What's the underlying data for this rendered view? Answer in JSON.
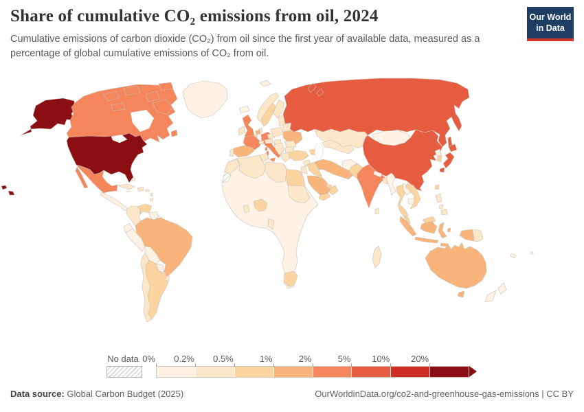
{
  "header": {
    "title": "Share of cumulative CO₂ emissions from oil, 2024",
    "subtitle": "Cumulative emissions of carbon dioxide (CO₂) from oil since the first year of available data, measured as a percentage of global cumulative emissions of CO₂ from oil.",
    "logo": {
      "line1": "Our World",
      "line2": "in Data",
      "bg": "#1d3d63",
      "accent": "#d4342c"
    }
  },
  "legend": {
    "no_data_label": "No data",
    "bins": [
      {
        "label": "0%",
        "range": "0%–0.2%",
        "color": "#fdf2e3"
      },
      {
        "label": "0.2%",
        "range": "0.2%–0.5%",
        "color": "#fce7c8"
      },
      {
        "label": "0.5%",
        "range": "0.5%–1%",
        "color": "#fbd49f"
      },
      {
        "label": "1%",
        "range": "1%–2%",
        "color": "#f8b47a"
      },
      {
        "label": "2%",
        "range": "2%–5%",
        "color": "#f5865b"
      },
      {
        "label": "5%",
        "range": "5%–10%",
        "color": "#e65c40"
      },
      {
        "label": "10%",
        "range": "10%–20%",
        "color": "#ce2d26"
      },
      {
        "label": "20%",
        "range": "20%+",
        "color": "#8b0e12"
      }
    ]
  },
  "footer": {
    "source_label": "Data source:",
    "source_value": " Global Carbon Budget (2025)",
    "right_text": "OurWorldinData.org/co2-and-greenhouse-gas-emissions | CC BY"
  },
  "chart_data": {
    "type": "choropleth-map",
    "title": "Share of cumulative CO₂ emissions from oil, 2024",
    "unit": "% of global cumulative CO₂ emissions from oil",
    "year": 2024,
    "color_scale_bin_labels": [
      "0%",
      "0.2%",
      "0.5%",
      "1%",
      "2%",
      "5%",
      "10%",
      "20%"
    ],
    "regions": {
      "united-states": {
        "name": "United States",
        "bin": 7
      },
      "canada": {
        "name": "Canada",
        "bin": 4
      },
      "greenland": {
        "name": "Greenland",
        "bin": 0
      },
      "mexico": {
        "name": "Mexico",
        "bin": 4
      },
      "cuba": {
        "name": "Cuba",
        "bin": 1
      },
      "hispaniola": {
        "name": "Haiti & Dominican Rep.",
        "bin": 1
      },
      "jamaica": {
        "name": "Jamaica",
        "bin": 0
      },
      "bahamas": {
        "name": "Bahamas",
        "bin": 0
      },
      "caribbean-islands": {
        "name": "Caribbean islands",
        "bin": 1
      },
      "central-america": {
        "name": "Central America",
        "bin": 0
      },
      "colombia": {
        "name": "Colombia",
        "bin": 1
      },
      "venezuela": {
        "name": "Venezuela",
        "bin": 2
      },
      "guyana-suriname": {
        "name": "Guyana & Suriname",
        "bin": 0
      },
      "french-guiana": {
        "name": "French Guiana",
        "bin": "no-data"
      },
      "ecuador": {
        "name": "Ecuador",
        "bin": 0
      },
      "peru": {
        "name": "Peru",
        "bin": 0
      },
      "brazil": {
        "name": "Brazil",
        "bin": 3
      },
      "bolivia": {
        "name": "Bolivia",
        "bin": 0
      },
      "paraguay": {
        "name": "Paraguay",
        "bin": 0
      },
      "uruguay": {
        "name": "Uruguay",
        "bin": 1
      },
      "argentina": {
        "name": "Argentina",
        "bin": 2
      },
      "chile": {
        "name": "Chile",
        "bin": 1
      },
      "iceland": {
        "name": "Iceland",
        "bin": 0
      },
      "ireland": {
        "name": "Ireland",
        "bin": 1
      },
      "united-kingdom": {
        "name": "United Kingdom",
        "bin": 4
      },
      "norway": {
        "name": "Norway",
        "bin": 1
      },
      "sweden": {
        "name": "Sweden",
        "bin": 2
      },
      "finland": {
        "name": "Finland",
        "bin": 1
      },
      "denmark": {
        "name": "Denmark",
        "bin": 1
      },
      "germany": {
        "name": "Germany",
        "bin": 4
      },
      "netherlands": {
        "name": "Netherlands",
        "bin": 3
      },
      "belgium": {
        "name": "Belgium",
        "bin": 2
      },
      "france": {
        "name": "France",
        "bin": 4
      },
      "spain": {
        "name": "Spain",
        "bin": 3
      },
      "portugal": {
        "name": "Portugal",
        "bin": 1
      },
      "italy": {
        "name": "Italy",
        "bin": 4
      },
      "switzerland": {
        "name": "Switzerland",
        "bin": 1
      },
      "czechia": {
        "name": "Czechia",
        "bin": 1
      },
      "austria": {
        "name": "Austria",
        "bin": 1
      },
      "hungary": {
        "name": "Hungary",
        "bin": 1
      },
      "poland": {
        "name": "Poland",
        "bin": 1
      },
      "baltic-states": {
        "name": "Baltic states",
        "bin": 1
      },
      "belarus": {
        "name": "Belarus",
        "bin": 1
      },
      "ukraine": {
        "name": "Ukraine",
        "bin": 3
      },
      "romania": {
        "name": "Romania",
        "bin": 1
      },
      "balkans": {
        "name": "Balkans",
        "bin": 1
      },
      "bulgaria": {
        "name": "Bulgaria",
        "bin": 1
      },
      "greece": {
        "name": "Greece",
        "bin": 1
      },
      "svalbard": {
        "name": "Svalbard",
        "bin": 0
      },
      "russia": {
        "name": "Russia",
        "bin": 5
      },
      "kazakhstan": {
        "name": "Kazakhstan",
        "bin": 1
      },
      "mongolia": {
        "name": "Mongolia",
        "bin": 0
      },
      "china": {
        "name": "China",
        "bin": 5
      },
      "north-korea": {
        "name": "North Korea",
        "bin": 0
      },
      "south-korea": {
        "name": "South Korea",
        "bin": 2
      },
      "japan": {
        "name": "Japan",
        "bin": 5
      },
      "taiwan": {
        "name": "Taiwan",
        "bin": 2
      },
      "turkey": {
        "name": "Turkey",
        "bin": 2
      },
      "caucasus": {
        "name": "Caucasus",
        "bin": 2
      },
      "central-asia": {
        "name": "Central Asia",
        "bin": 1
      },
      "syria": {
        "name": "Syria",
        "bin": 1
      },
      "israel-jordan": {
        "name": "Israel & Jordan",
        "bin": 1
      },
      "iraq": {
        "name": "Iraq",
        "bin": 2
      },
      "saudi-arabia": {
        "name": "Saudi Arabia",
        "bin": 3
      },
      "yemen": {
        "name": "Yemen",
        "bin": 2
      },
      "oman": {
        "name": "Oman",
        "bin": 2
      },
      "uae-qatar": {
        "name": "UAE & Qatar",
        "bin": 2
      },
      "kuwait": {
        "name": "Kuwait",
        "bin": 2
      },
      "iran": {
        "name": "Iran",
        "bin": 3
      },
      "afghanistan": {
        "name": "Afghanistan",
        "bin": 0
      },
      "pakistan": {
        "name": "Pakistan",
        "bin": 2
      },
      "india": {
        "name": "India",
        "bin": 4
      },
      "sri-lanka": {
        "name": "Sri Lanka",
        "bin": 1
      },
      "nepal": {
        "name": "Nepal",
        "bin": 0
      },
      "bangladesh": {
        "name": "Bangladesh",
        "bin": 1
      },
      "myanmar": {
        "name": "Myanmar",
        "bin": 0
      },
      "thailand": {
        "name": "Thailand",
        "bin": 2
      },
      "laos": {
        "name": "Laos",
        "bin": 0
      },
      "vietnam": {
        "name": "Vietnam",
        "bin": 2
      },
      "cambodia": {
        "name": "Cambodia",
        "bin": 0
      },
      "malaysia": {
        "name": "Malaysia",
        "bin": 2
      },
      "indonesia": {
        "name": "Indonesia",
        "bin": 3
      },
      "philippines": {
        "name": "Philippines",
        "bin": 1
      },
      "papua-new-guinea": {
        "name": "Papua New Guinea",
        "bin": 1
      },
      "morocco": {
        "name": "Morocco",
        "bin": 1
      },
      "western-sahara": {
        "name": "Western Sahara",
        "bin": "no-data"
      },
      "algeria": {
        "name": "Algeria",
        "bin": 1
      },
      "tunisia": {
        "name": "Tunisia",
        "bin": 1
      },
      "libya": {
        "name": "Libya",
        "bin": 1
      },
      "egypt": {
        "name": "Egypt",
        "bin": 2
      },
      "sudan": {
        "name": "Sudan",
        "bin": 1
      },
      "nigeria": {
        "name": "Nigeria",
        "bin": 2
      },
      "ghana": {
        "name": "Ghana",
        "bin": 1
      },
      "gabon-congo": {
        "name": "Gabon & Congo",
        "bin": 1
      },
      "south-africa": {
        "name": "South Africa",
        "bin": 2
      },
      "madagascar": {
        "name": "Madagascar",
        "bin": 1
      },
      "africa-other": {
        "name": "Other Africa",
        "bin": 0
      },
      "australia": {
        "name": "Australia",
        "bin": 3
      },
      "new-zealand": {
        "name": "New Zealand",
        "bin": 0
      },
      "pacific-islands": {
        "name": "Pacific islands",
        "bin": 0
      }
    }
  }
}
